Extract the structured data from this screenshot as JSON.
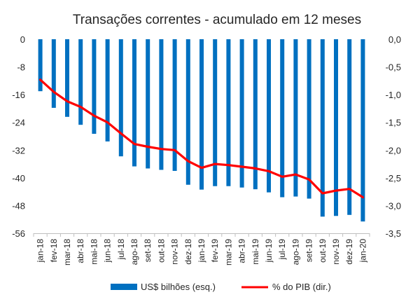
{
  "chart_data": {
    "type": "bar+line",
    "title": "Transações correntes - acumulado em 12 meses",
    "categories": [
      "jan-18",
      "fev-18",
      "mar-18",
      "abr-18",
      "mai-18",
      "jun-18",
      "jul-18",
      "ago-18",
      "set-18",
      "out-18",
      "nov-18",
      "dez-18",
      "jan-19",
      "fev-19",
      "mar-19",
      "abr-19",
      "mai-19",
      "jun-19",
      "jul-19",
      "ago-19",
      "set-19",
      "out-19",
      "nov-19",
      "dez-19",
      "jan-20"
    ],
    "y_left": {
      "min": -56,
      "max": 0,
      "ticks": [
        "0",
        "-8",
        "-16",
        "-24",
        "-32",
        "-40",
        "-48",
        "-56"
      ],
      "values": [
        0,
        -8,
        -16,
        -24,
        -32,
        -40,
        -48,
        -56
      ]
    },
    "y_right": {
      "min": -3.5,
      "max": 0,
      "ticks": [
        "0,0",
        "-0,5",
        "-1,0",
        "-1,5",
        "-2,0",
        "-2,5",
        "-3,0",
        "-3,5"
      ],
      "values": [
        0,
        -0.5,
        -1.0,
        -1.5,
        -2.0,
        -2.5,
        -3.0,
        -3.5
      ]
    },
    "series": [
      {
        "name": "US$ bilhões (esq.)",
        "type": "bar",
        "axis": "left",
        "color": "#0070c0",
        "values": [
          -15.0,
          -19.8,
          -22.4,
          -24.7,
          -27.3,
          -29.5,
          -33.8,
          -36.7,
          -37.3,
          -37.7,
          -38.0,
          -42.0,
          -43.4,
          -42.4,
          -42.4,
          -42.8,
          -43.3,
          -44.2,
          -45.6,
          -45.4,
          -46.0,
          -51.2,
          -51.0,
          -50.7,
          -52.6
        ]
      },
      {
        "name": "% do PIB (dir.)",
        "type": "line",
        "axis": "right",
        "color": "#ff0000",
        "values": [
          -0.73,
          -0.95,
          -1.12,
          -1.22,
          -1.38,
          -1.5,
          -1.7,
          -1.89,
          -1.94,
          -1.98,
          -2.0,
          -2.2,
          -2.32,
          -2.25,
          -2.27,
          -2.3,
          -2.33,
          -2.38,
          -2.48,
          -2.44,
          -2.53,
          -2.78,
          -2.73,
          -2.7,
          -2.85
        ]
      }
    ],
    "legend_position": "bottom",
    "grid": false
  }
}
